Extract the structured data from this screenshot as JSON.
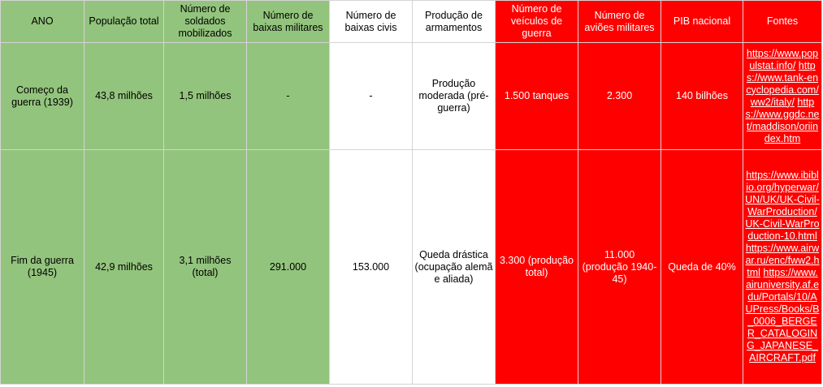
{
  "headers": [
    "ANO",
    "População total",
    "Número de soldados mobilizados",
    "Número de baixas militares",
    "Número de baixas civis",
    "Produção de armamentos",
    "Número de veículos de guerra",
    "Número de aviões militares",
    "PIB nacional",
    "Fontes"
  ],
  "rows": [
    {
      "ano": "Começo da guerra (1939)",
      "populacao": "43,8 milhões",
      "soldados": "1,5 milhões",
      "baixas_militares": "-",
      "baixas_civis": "-",
      "armamentos": "Produção moderada (pré-guerra)",
      "veiculos": "1.500 tanques",
      "avioes": "2.300",
      "pib": "140 bilhões",
      "fontes": [
        "https://www.populstat.info/",
        "https://www.tank-encyclopedia.com/ww2/italy/",
        "https://www.ggdc.net/maddison/oriindex.htm"
      ]
    },
    {
      "ano": "Fim da guerra (1945)",
      "populacao": "42,9 milhões",
      "soldados": "3,1 milhões (total)",
      "baixas_militares": "291.000",
      "baixas_civis": "153.000",
      "armamentos": "Queda drástica (ocupação alemã e aliada)",
      "veiculos": "3.300 (produção total)",
      "avioes": "11.000 (produção 1940-45)",
      "pib": "Queda de 40%",
      "fontes": [
        "https://www.ibiblio.org/hyperwar/UN/UK/UK-Civil-WarProduction/UK-Civil-WarProduction-10.html",
        "https://www.airwar.ru/enc/fww2.html",
        "https://www.airuniversity.af.edu/Portals/10/AUPress/Books/B_0006_BERGER_CATALOGING_JAPANESE_AIRCRAFT.pdf"
      ]
    }
  ],
  "colors": {
    "green": "#93c47d",
    "red": "#ff0000",
    "white": "#ffffff",
    "grid": "#d4d4d4"
  }
}
